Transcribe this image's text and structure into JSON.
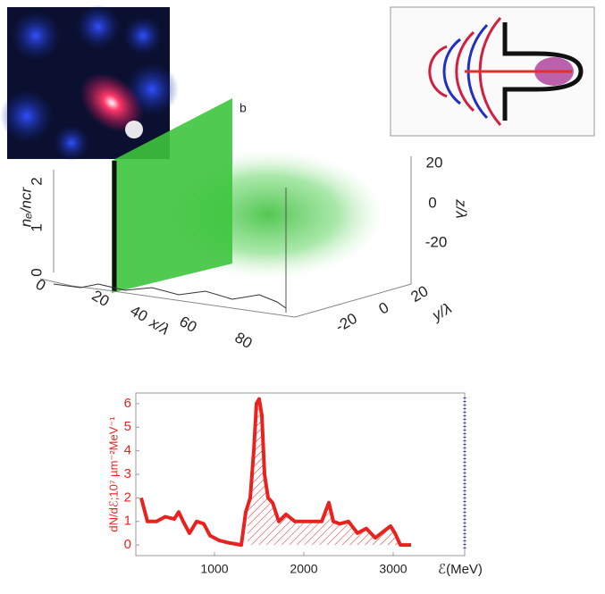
{
  "panel_label": "b",
  "chart_data": [
    {
      "type": "volume3d",
      "xlabel": "x/λ",
      "ylabel": "y/λ",
      "zlabel": "z/λ",
      "vlabel": "nₑ/ncr",
      "xticks": [
        0,
        20,
        40,
        60,
        80
      ],
      "yticks": [
        -20,
        0,
        20
      ],
      "zticks": [
        -20,
        0,
        20
      ],
      "vticks": [
        0,
        1,
        2
      ]
    },
    {
      "type": "line",
      "xlabel": "ℰ(MeV)",
      "ylabel": "dN/dℰ;10⁷ µm⁻²MeV⁻¹",
      "color": "#e8231f",
      "x": [
        180,
        250,
        350,
        450,
        550,
        600,
        650,
        720,
        800,
        880,
        950,
        1050,
        1150,
        1300,
        1350,
        1400,
        1440,
        1470,
        1500,
        1530,
        1560,
        1600,
        1650,
        1720,
        1800,
        1900,
        2050,
        2200,
        2280,
        2330,
        2400,
        2500,
        2600,
        2700,
        2800,
        2900,
        2970,
        3020,
        3080,
        3200
      ],
      "values": [
        2.0,
        1.0,
        1.0,
        1.2,
        1.1,
        1.4,
        1.0,
        0.5,
        1.0,
        0.9,
        0.4,
        0.2,
        0.1,
        0.0,
        1.4,
        2.0,
        4.0,
        6.0,
        6.2,
        5.5,
        3.0,
        2.0,
        1.8,
        1.0,
        1.3,
        1.0,
        1.0,
        1.0,
        1.8,
        1.0,
        0.9,
        1.0,
        0.5,
        0.7,
        0.3,
        0.6,
        0.8,
        0.5,
        0.0,
        0.0
      ],
      "xlim": [
        120,
        3800
      ],
      "ylim": [
        -0.45,
        6.45
      ],
      "xticks": [
        1000,
        2000,
        3000
      ],
      "yticks": [
        0,
        1,
        2,
        3,
        4,
        5,
        6
      ]
    }
  ]
}
